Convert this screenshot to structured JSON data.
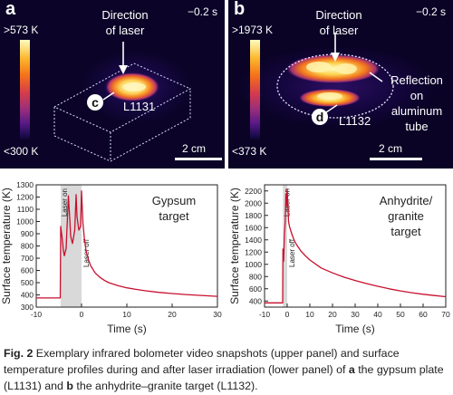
{
  "panel_a": {
    "letter": "a",
    "time": "−0.2 s",
    "direction_label_line1": "Direction",
    "direction_label_line2": "of laser",
    "colorbar_max": ">573 K",
    "colorbar_min": "<300 K",
    "sample_marker": "c",
    "sample_label": "L1131",
    "scale_label": "2 cm"
  },
  "panel_b": {
    "letter": "b",
    "time": "−0.2 s",
    "direction_label_line1": "Direction",
    "direction_label_line2": "of laser",
    "colorbar_max": ">1973 K",
    "colorbar_min": "<373 K",
    "sample_marker": "d",
    "sample_label": "L1132",
    "reflection_lines": [
      "Reflection",
      "on",
      "aluminum",
      "tube"
    ],
    "scale_label": "2 cm"
  },
  "chart_data": [
    {
      "type": "line",
      "panel": "c",
      "annotation_lines": [
        "Gypsum",
        "target"
      ],
      "xlabel": "Time (s)",
      "ylabel": "Surface temperature (K)",
      "xlim": [
        -10,
        30
      ],
      "ylim": [
        300,
        1300
      ],
      "xticks": [
        -10,
        0,
        10,
        20,
        30
      ],
      "yticks": [
        300,
        400,
        500,
        600,
        700,
        800,
        900,
        1000,
        1100,
        1200,
        1300
      ],
      "laser_on_label": "Laser on",
      "laser_off_label": "Laser off",
      "laser_window": [
        -4.6,
        0
      ],
      "series": [
        {
          "color": "#c8102e",
          "x": [
            -10,
            -4.7,
            -4.6,
            -4.3,
            -4.0,
            -3.8,
            -3.4,
            -2.9,
            -2.6,
            -2.4,
            -2.0,
            -1.5,
            -1.2,
            -1.0,
            -0.6,
            -0.2,
            0.0,
            0.3,
            0.6,
            1.0,
            1.5,
            2,
            3,
            4,
            5,
            6,
            8,
            10,
            12,
            14,
            17,
            20,
            23,
            26,
            30
          ],
          "y": [
            375,
            375,
            960,
            870,
            760,
            720,
            780,
            1210,
            1020,
            880,
            820,
            930,
            1220,
            1040,
            930,
            960,
            1250,
            990,
            870,
            760,
            690,
            640,
            580,
            545,
            520,
            500,
            476,
            458,
            445,
            434,
            421,
            411,
            403,
            396,
            388
          ]
        }
      ]
    },
    {
      "type": "line",
      "panel": "d",
      "annotation_lines": [
        "Anhydrite/",
        "granite",
        "target"
      ],
      "xlabel": "Time (s)",
      "ylabel": "Surface temperature (K)",
      "xlim": [
        -10,
        70
      ],
      "ylim": [
        300,
        2300
      ],
      "xticks": [
        -10,
        0,
        10,
        20,
        30,
        40,
        50,
        60,
        70
      ],
      "yticks": [
        400,
        600,
        800,
        1000,
        1200,
        1400,
        1600,
        1800,
        2000,
        2200
      ],
      "laser_on_label": "Laser on",
      "laser_off_label": "Laser off",
      "laser_window": [
        -1.9,
        0
      ],
      "series": [
        {
          "color": "#c8102e",
          "x": [
            -10,
            -2.0,
            -1.9,
            -1.6,
            -1.2,
            -0.9,
            -0.6,
            -0.3,
            0.0,
            0.3,
            0.6,
            1,
            2,
            3,
            4,
            6,
            8,
            10,
            15,
            20,
            25,
            30,
            35,
            40,
            45,
            50,
            55,
            60,
            65,
            70
          ],
          "y": [
            370,
            370,
            1250,
            1050,
            1500,
            1700,
            2150,
            1950,
            2230,
            1950,
            1700,
            1620,
            1500,
            1400,
            1330,
            1220,
            1140,
            1070,
            940,
            860,
            790,
            735,
            685,
            640,
            600,
            565,
            535,
            510,
            490,
            470
          ]
        }
      ]
    }
  ],
  "caption": {
    "fig_label": "Fig. 2",
    "text_1": " Exemplary infrared bolometer video snapshots (upper panel) and surface temperature profiles during and after laser irradiation (lower panel) of ",
    "a_letter": "a",
    "text_2": " the gypsum plate (L1131) and ",
    "b_letter": "b",
    "text_3": " the anhydrite–granite target (L1132)."
  }
}
